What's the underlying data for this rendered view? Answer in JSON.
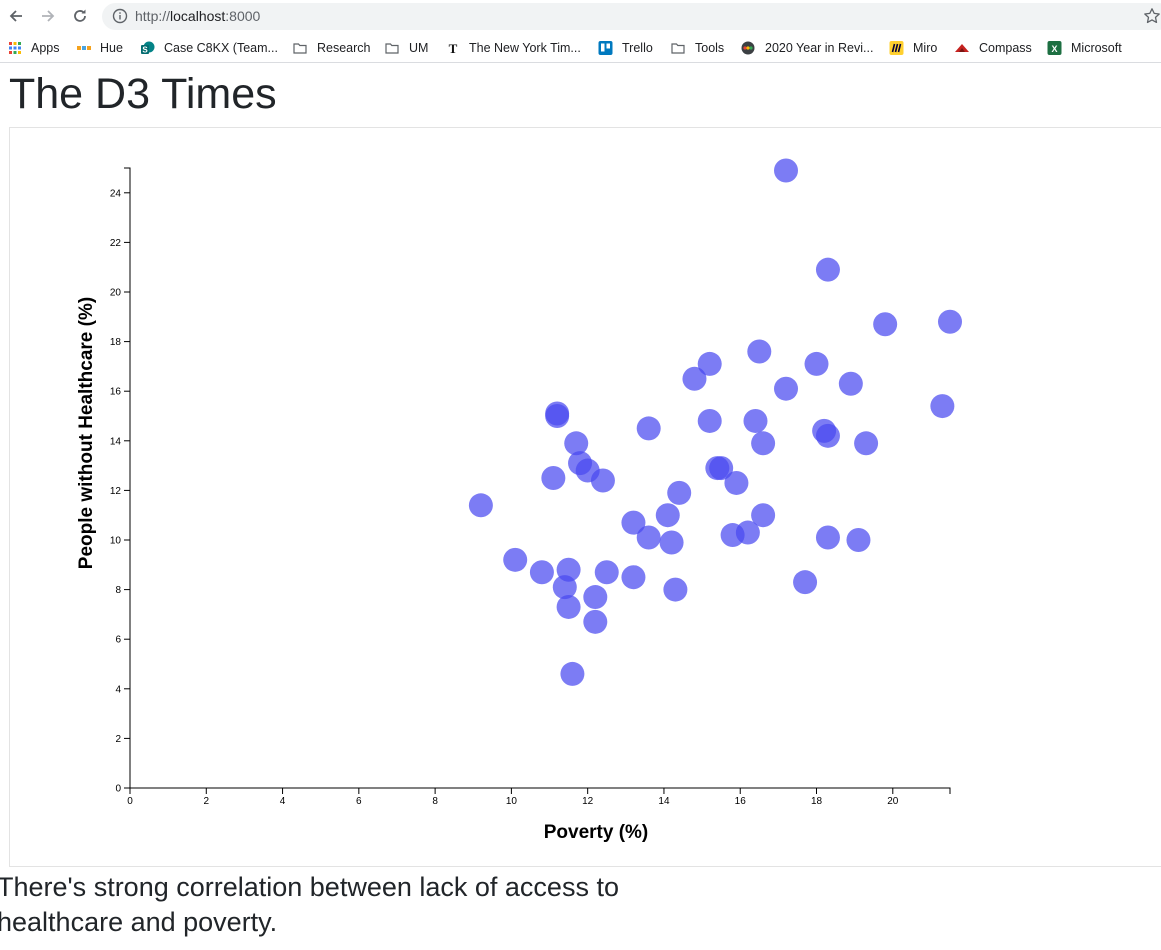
{
  "browser": {
    "url_scheme": "http://",
    "url_host": "localhost",
    "url_port": ":8000",
    "bookmarks": [
      {
        "label": "Apps",
        "icon": "apps-grid-icon"
      },
      {
        "label": "Hue",
        "icon": "hue-icon"
      },
      {
        "label": "Case C8KX (Team...",
        "icon": "sharepoint-icon"
      },
      {
        "label": "Research",
        "icon": "folder-icon"
      },
      {
        "label": "UM",
        "icon": "folder-icon"
      },
      {
        "label": "The New York Tim...",
        "icon": "nyt-icon"
      },
      {
        "label": "Trello",
        "icon": "trello-icon"
      },
      {
        "label": "Tools",
        "icon": "folder-icon"
      },
      {
        "label": "2020 Year in Revi...",
        "icon": "year-review-icon"
      },
      {
        "label": "Miro",
        "icon": "miro-icon"
      },
      {
        "label": "Compass",
        "icon": "compass-icon"
      },
      {
        "label": "Microsoft",
        "icon": "excel-icon"
      }
    ]
  },
  "page": {
    "title": "The D3 Times",
    "caption": "There's strong correlation between lack of access to healthcare and poverty."
  },
  "chart_data": {
    "type": "scatter",
    "xlabel": "Poverty (%)",
    "ylabel": "People without Healthcare (%)",
    "xlim": [
      0,
      21.5
    ],
    "ylim": [
      0,
      25
    ],
    "xticks": [
      0,
      2,
      4,
      6,
      8,
      10,
      12,
      14,
      16,
      18,
      20
    ],
    "yticks": [
      0,
      2,
      4,
      6,
      8,
      10,
      12,
      14,
      16,
      18,
      20,
      22,
      24
    ],
    "point_color": "#4a4af0",
    "points": [
      [
        17.2,
        24.9
      ],
      [
        18.3,
        20.9
      ],
      [
        19.8,
        18.7
      ],
      [
        21.5,
        18.8
      ],
      [
        16.5,
        17.6
      ],
      [
        15.2,
        17.1
      ],
      [
        18.0,
        17.1
      ],
      [
        14.8,
        16.5
      ],
      [
        17.2,
        16.1
      ],
      [
        18.9,
        16.3
      ],
      [
        21.3,
        15.4
      ],
      [
        11.2,
        15.1
      ],
      [
        11.2,
        15.0
      ],
      [
        15.2,
        14.8
      ],
      [
        16.4,
        14.8
      ],
      [
        13.6,
        14.5
      ],
      [
        18.2,
        14.4
      ],
      [
        18.3,
        14.2
      ],
      [
        11.7,
        13.9
      ],
      [
        16.6,
        13.9
      ],
      [
        19.3,
        13.9
      ],
      [
        11.8,
        13.1
      ],
      [
        12.0,
        12.8
      ],
      [
        15.4,
        12.9
      ],
      [
        15.5,
        12.9
      ],
      [
        11.1,
        12.5
      ],
      [
        12.4,
        12.4
      ],
      [
        15.9,
        12.3
      ],
      [
        14.4,
        11.9
      ],
      [
        9.2,
        11.4
      ],
      [
        14.1,
        11.0
      ],
      [
        16.6,
        11.0
      ],
      [
        13.2,
        10.7
      ],
      [
        16.2,
        10.3
      ],
      [
        15.8,
        10.2
      ],
      [
        13.6,
        10.1
      ],
      [
        18.3,
        10.1
      ],
      [
        19.1,
        10.0
      ],
      [
        14.2,
        9.9
      ],
      [
        10.1,
        9.2
      ],
      [
        10.8,
        8.7
      ],
      [
        11.5,
        8.8
      ],
      [
        12.5,
        8.7
      ],
      [
        13.2,
        8.5
      ],
      [
        17.7,
        8.3
      ],
      [
        11.4,
        8.1
      ],
      [
        14.3,
        8.0
      ],
      [
        12.2,
        7.7
      ],
      [
        11.5,
        7.3
      ],
      [
        12.2,
        6.7
      ],
      [
        11.6,
        4.6
      ]
    ]
  }
}
